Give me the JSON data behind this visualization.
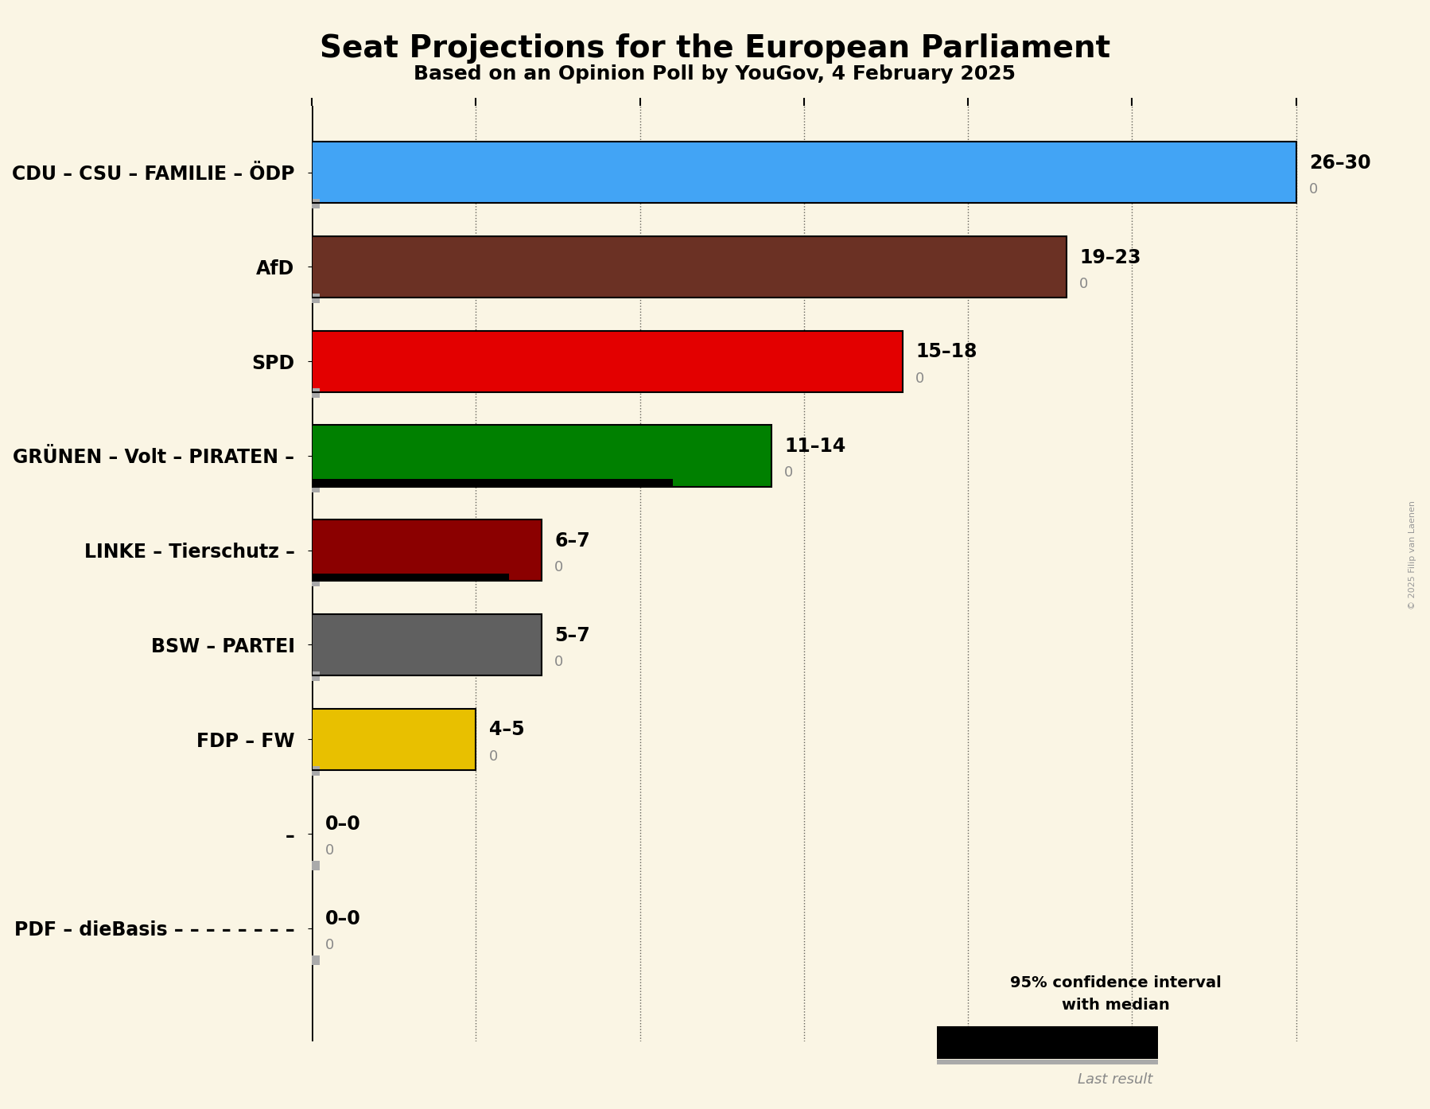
{
  "title": "Seat Projections for the European Parliament",
  "subtitle": "Based on an Opinion Poll by YouGov, 4 February 2025",
  "copyright": "© 2025 Filip van Laenen",
  "background_color": "#FAF5E4",
  "parties": [
    "CDU – CSU – FAMILIE – ÖDP",
    "AfD",
    "SPD",
    "GRÜNEN – Volt – PIRATEN –",
    "LINKE – Tierschutz –",
    "BSW – PARTEI",
    "FDP – FW",
    "–",
    "PDF – dieBasis – – – – – – – –"
  ],
  "median": [
    26,
    19,
    15,
    11,
    6,
    5,
    4,
    0,
    0
  ],
  "high": [
    30,
    23,
    18,
    14,
    7,
    7,
    5,
    0,
    0
  ],
  "last_result": [
    0,
    0,
    0,
    0,
    0,
    0,
    0,
    0,
    0
  ],
  "label": [
    "26–30",
    "19–23",
    "15–18",
    "11–14",
    "6–7",
    "5–7",
    "4–5",
    "0–0",
    "0–0"
  ],
  "colors": [
    "#42A4F5",
    "#6B3124",
    "#E30000",
    "#008000",
    "#8B0000",
    "#606060",
    "#E8C000",
    "#000000",
    "#000000"
  ],
  "hatch_patterns": [
    "////",
    "////",
    "xxxx",
    "////",
    "xxxx",
    "xxxx////",
    "xxxx",
    "",
    ""
  ],
  "has_black_stripe": [
    false,
    false,
    false,
    true,
    true,
    false,
    false,
    false,
    false
  ],
  "xlim": [
    0,
    32
  ],
  "xticks": [
    0,
    5,
    10,
    15,
    20,
    25,
    30
  ],
  "legend_text1": "95% confidence interval",
  "legend_text2": "with median",
  "legend_last": "Last result"
}
